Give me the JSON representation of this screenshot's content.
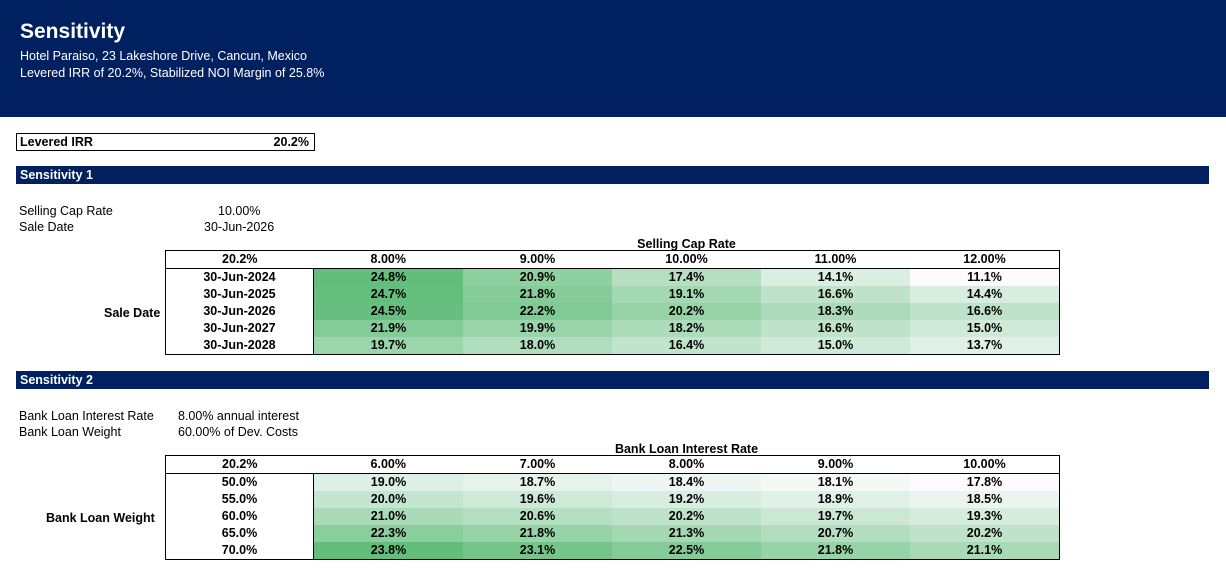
{
  "header": {
    "title": "Sensitivity",
    "address": "Hotel Paraiso, 23 Lakeshore Drive, Cancun, Mexico",
    "summary": "Levered IRR of 20.2%, Stabilized NOI Margin of 25.8%"
  },
  "levered_irr": {
    "label": "Levered IRR",
    "value": "20.2%"
  },
  "sensitivity1": {
    "title": "Sensitivity 1",
    "inputs": [
      {
        "label": "Selling Cap Rate",
        "value": "10.00%"
      },
      {
        "label": "Sale Date",
        "value": "30-Jun-2026"
      }
    ],
    "col_axis": "Selling Cap Rate",
    "row_axis": "Sale Date",
    "corner": "20.2%",
    "cols": [
      "8.00%",
      "9.00%",
      "10.00%",
      "11.00%",
      "12.00%"
    ],
    "rows": [
      {
        "label": "30-Jun-2024",
        "values": [
          "24.8%",
          "20.9%",
          "17.4%",
          "14.1%",
          "11.1%"
        ]
      },
      {
        "label": "30-Jun-2025",
        "values": [
          "24.7%",
          "21.8%",
          "19.1%",
          "16.6%",
          "14.4%"
        ]
      },
      {
        "label": "30-Jun-2026",
        "values": [
          "24.5%",
          "22.2%",
          "20.2%",
          "18.3%",
          "16.6%"
        ]
      },
      {
        "label": "30-Jun-2027",
        "values": [
          "21.9%",
          "19.9%",
          "18.2%",
          "16.6%",
          "15.0%"
        ]
      },
      {
        "label": "30-Jun-2028",
        "values": [
          "19.7%",
          "18.0%",
          "16.4%",
          "15.0%",
          "13.7%"
        ]
      }
    ]
  },
  "sensitivity2": {
    "title": "Sensitivity 2",
    "inputs": [
      {
        "label": "Bank Loan Interest Rate",
        "value": "8.00% annual interest"
      },
      {
        "label": "Bank Loan Weight",
        "value": "60.00% of Dev. Costs"
      }
    ],
    "col_axis": "Bank Loan Interest Rate",
    "row_axis": "Bank Loan Weight",
    "corner": "20.2%",
    "cols": [
      "6.00%",
      "7.00%",
      "8.00%",
      "9.00%",
      "10.00%"
    ],
    "rows": [
      {
        "label": "50.0%",
        "values": [
          "19.0%",
          "18.7%",
          "18.4%",
          "18.1%",
          "17.8%"
        ]
      },
      {
        "label": "55.0%",
        "values": [
          "20.0%",
          "19.6%",
          "19.2%",
          "18.9%",
          "18.5%"
        ]
      },
      {
        "label": "60.0%",
        "values": [
          "21.0%",
          "20.6%",
          "20.2%",
          "19.7%",
          "19.3%"
        ]
      },
      {
        "label": "65.0%",
        "values": [
          "22.3%",
          "21.8%",
          "21.3%",
          "20.7%",
          "20.2%"
        ]
      },
      {
        "label": "70.0%",
        "values": [
          "23.8%",
          "23.1%",
          "22.5%",
          "21.8%",
          "21.1%"
        ]
      }
    ]
  },
  "colors": {
    "navy": "#002060",
    "heat_high": "#63be7b",
    "heat_low": "#fcfcff"
  }
}
